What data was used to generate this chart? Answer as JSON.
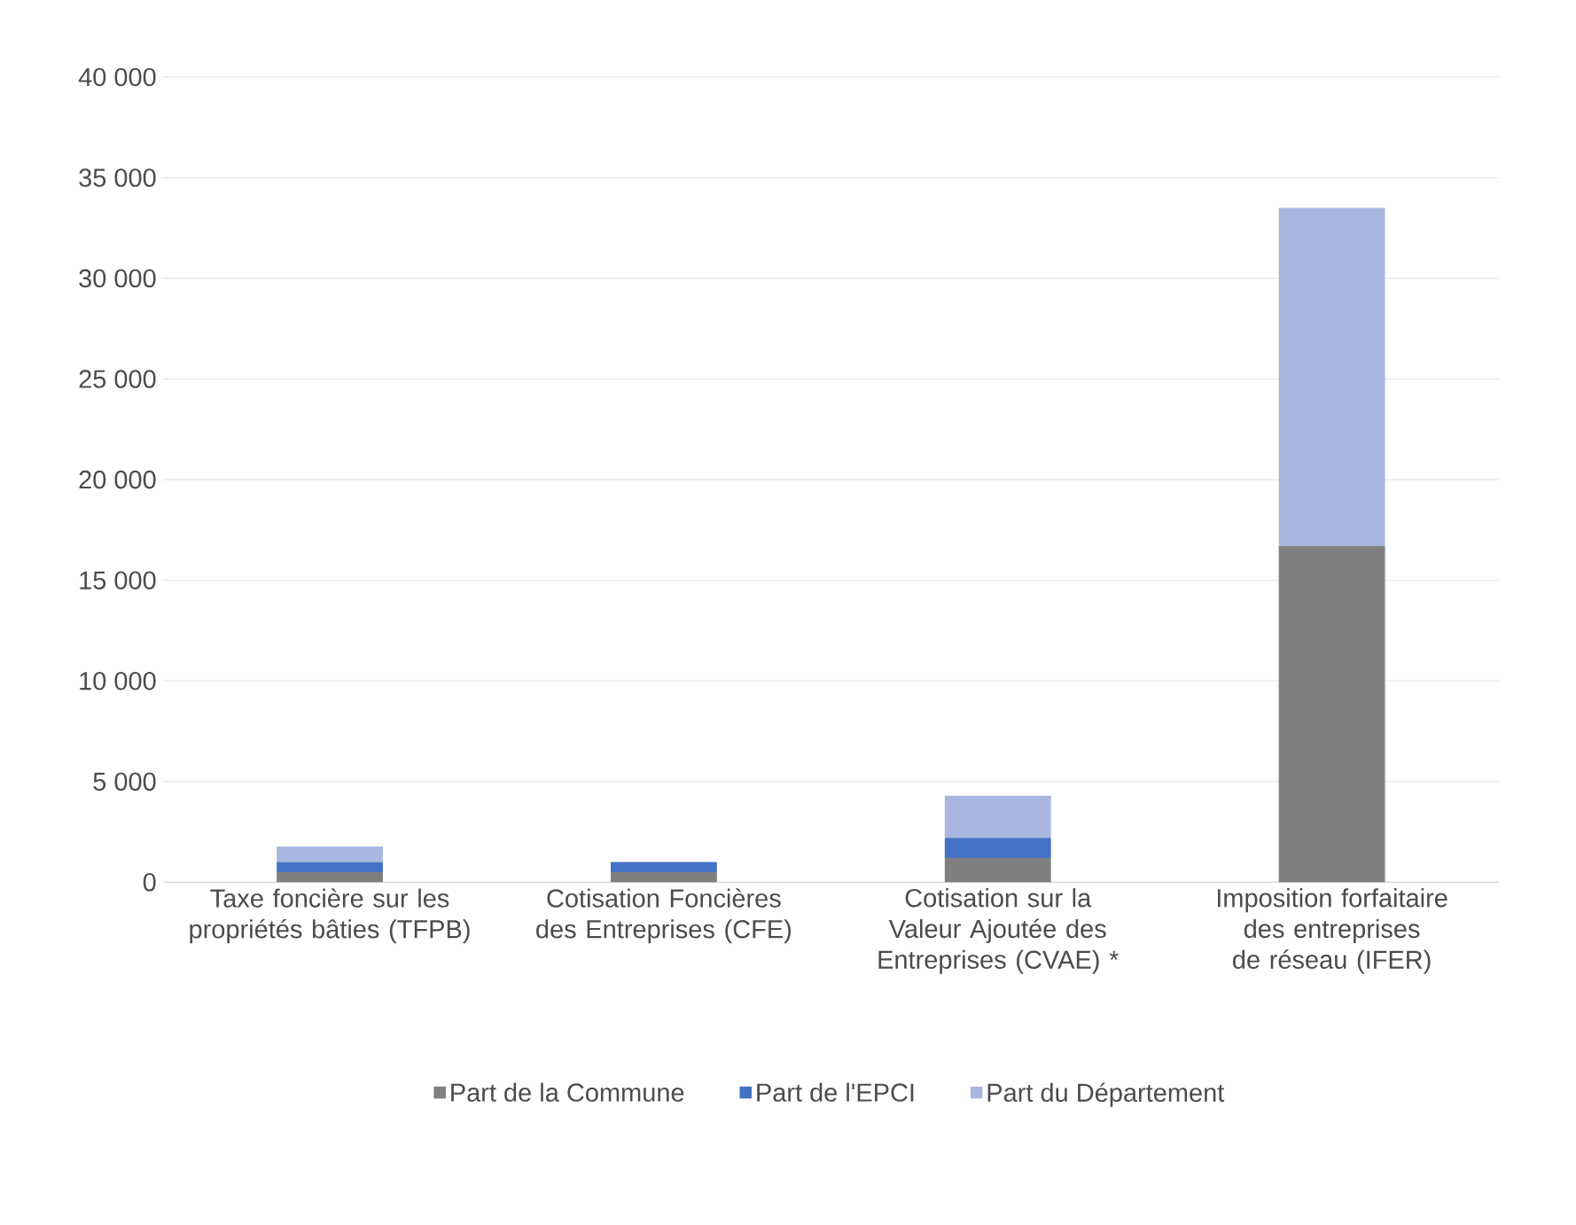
{
  "chart_data": {
    "type": "bar",
    "stacked": true,
    "categories": [
      "Taxe foncière sur les propriétés bâties (TFPB)",
      "Cotisation Foncières des Entreprises (CFE)",
      "Cotisation sur la Valeur Ajoutée des Entreprises (CVAE) *",
      "Imposition forfaitaire des entreprises de réseau (IFER)"
    ],
    "series": [
      {
        "name": "Part de la Commune",
        "color": "#7f7f7f",
        "values": [
          500,
          500,
          1200,
          16700
        ]
      },
      {
        "name": "Part de l'EPCI",
        "color": "#4472c4",
        "values": [
          500,
          500,
          1000,
          0
        ]
      },
      {
        "name": "Part du Département",
        "color": "#a9b7e0",
        "values": [
          770,
          0,
          2100,
          16800
        ]
      }
    ],
    "ylim": [
      0,
      40000
    ],
    "yticks": [
      {
        "value": 0,
        "label": "0"
      },
      {
        "value": 5000,
        "label": "5 000"
      },
      {
        "value": 10000,
        "label": "10 000"
      },
      {
        "value": 15000,
        "label": "15 000"
      },
      {
        "value": 20000,
        "label": "20 000"
      },
      {
        "value": 25000,
        "label": "25 000"
      },
      {
        "value": 30000,
        "label": "30 000"
      },
      {
        "value": 35000,
        "label": "35 000"
      },
      {
        "value": 40000,
        "label": "40 000"
      }
    ],
    "grid": "y",
    "legend": "bottom"
  }
}
